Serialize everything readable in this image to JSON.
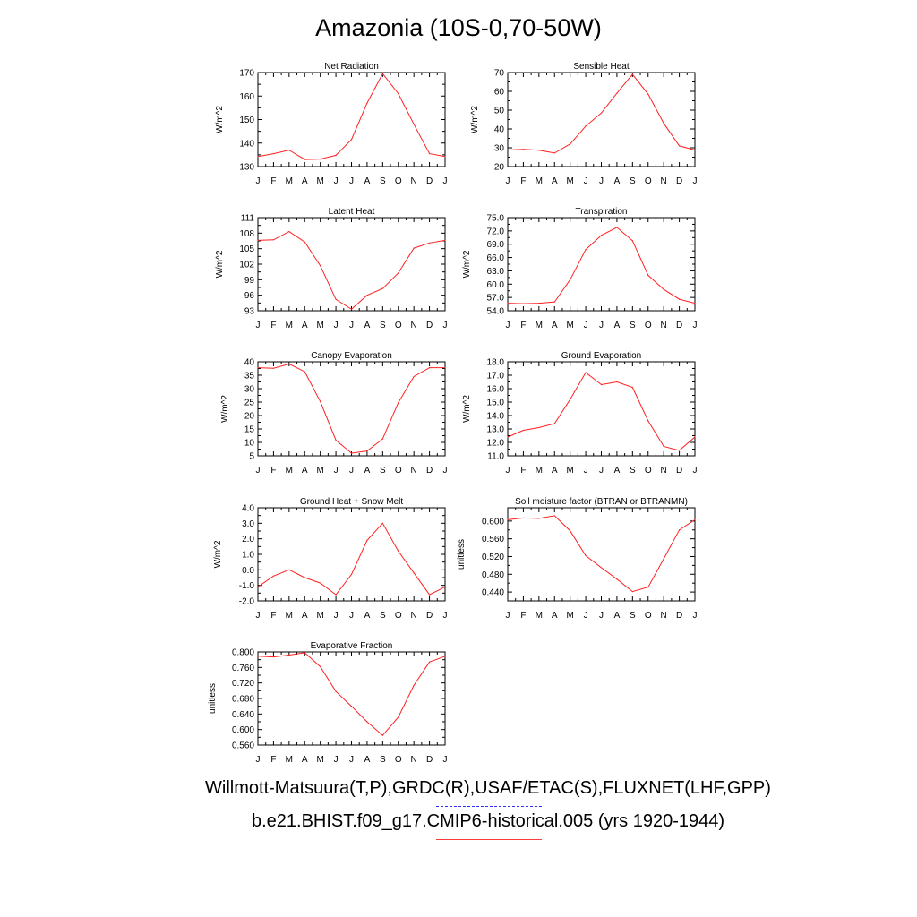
{
  "page": {
    "title": "Amazonia (10S-0,70-50W)",
    "legend": [
      {
        "label": "Willmott-Matsuura(T,P),GRDC(R),USAF/ETAC(S),FLUXNET(LHF,GPP)",
        "color": "#2f2ff5",
        "style": "dashed"
      },
      {
        "label": "b.e21.BHIST.f09_g17.CMIP6-historical.005 (yrs 1920-1944)",
        "color": "#ff2020",
        "style": "solid"
      }
    ]
  },
  "chart_data": [
    {
      "type": "line",
      "title": "Net Radiation",
      "ylabel": "W/m^2",
      "ylim": [
        130,
        170
      ],
      "yticks": [
        "130",
        "140",
        "150",
        "160",
        "170"
      ],
      "categories": [
        "J",
        "F",
        "M",
        "A",
        "M",
        "J",
        "J",
        "A",
        "S",
        "O",
        "N",
        "D",
        "J"
      ],
      "series": [
        {
          "color": "#ff2020",
          "values": [
            134.3,
            135.5,
            137.0,
            133.0,
            133.2,
            134.8,
            141.5,
            157.0,
            169.5,
            161.0,
            148.0,
            135.5,
            134.3
          ]
        }
      ]
    },
    {
      "type": "line",
      "title": "Sensible Heat",
      "ylabel": "W/m^2",
      "ylim": [
        20,
        70
      ],
      "yticks": [
        "20",
        "30",
        "40",
        "50",
        "60",
        "70"
      ],
      "categories": [
        "J",
        "F",
        "M",
        "A",
        "M",
        "J",
        "J",
        "A",
        "S",
        "O",
        "N",
        "D",
        "J"
      ],
      "series": [
        {
          "color": "#ff2020",
          "values": [
            28.8,
            29.2,
            28.7,
            27.2,
            32.0,
            41.5,
            48.5,
            59.0,
            69.0,
            58.5,
            43.0,
            31.0,
            28.8
          ]
        }
      ]
    },
    {
      "type": "line",
      "title": "Latent Heat",
      "ylabel": "W/m^2",
      "ylim": [
        93,
        111
      ],
      "yticks": [
        "93",
        "96",
        "99",
        "102",
        "105",
        "108",
        "111"
      ],
      "categories": [
        "J",
        "F",
        "M",
        "A",
        "M",
        "J",
        "J",
        "A",
        "S",
        "O",
        "N",
        "D",
        "J"
      ],
      "series": [
        {
          "color": "#ff2020",
          "values": [
            106.6,
            106.7,
            108.3,
            106.3,
            101.7,
            95.2,
            93.3,
            96.0,
            97.3,
            100.3,
            105.1,
            106.1,
            106.6
          ]
        }
      ]
    },
    {
      "type": "line",
      "title": "Transpiration",
      "ylabel": "W/m^2",
      "ylim": [
        54.0,
        75.0
      ],
      "yticks": [
        "54.0",
        "57.0",
        "60.0",
        "63.0",
        "66.0",
        "69.0",
        "72.0",
        "75.0"
      ],
      "categories": [
        "J",
        "F",
        "M",
        "A",
        "M",
        "J",
        "J",
        "A",
        "S",
        "O",
        "N",
        "D",
        "J"
      ],
      "series": [
        {
          "color": "#ff2020",
          "values": [
            55.7,
            55.6,
            55.7,
            56.0,
            61.0,
            67.8,
            71.0,
            72.8,
            69.8,
            62.0,
            58.8,
            56.6,
            55.7
          ]
        }
      ]
    },
    {
      "type": "line",
      "title": "Canopy Evaporation",
      "ylabel": "W/m^2",
      "ylim": [
        5,
        40
      ],
      "yticks": [
        "5",
        "10",
        "15",
        "20",
        "25",
        "30",
        "35",
        "40"
      ],
      "categories": [
        "J",
        "F",
        "M",
        "A",
        "M",
        "J",
        "J",
        "A",
        "S",
        "O",
        "N",
        "D",
        "J"
      ],
      "series": [
        {
          "color": "#ff2020",
          "values": [
            37.8,
            37.6,
            39.2,
            36.3,
            25.2,
            10.8,
            6.0,
            6.8,
            11.3,
            24.8,
            34.5,
            37.8,
            37.8
          ]
        }
      ]
    },
    {
      "type": "line",
      "title": "Ground Evaporation",
      "ylabel": "W/m^2",
      "ylim": [
        11.0,
        18.0
      ],
      "yticks": [
        "11.0",
        "12.0",
        "13.0",
        "14.0",
        "15.0",
        "16.0",
        "17.0",
        "18.0"
      ],
      "categories": [
        "J",
        "F",
        "M",
        "A",
        "M",
        "J",
        "J",
        "A",
        "S",
        "O",
        "N",
        "D",
        "J"
      ],
      "series": [
        {
          "color": "#ff2020",
          "values": [
            12.4,
            12.9,
            13.1,
            13.4,
            15.2,
            17.2,
            16.3,
            16.5,
            16.1,
            13.6,
            11.7,
            11.4,
            12.4
          ]
        }
      ]
    },
    {
      "type": "line",
      "title": "Ground Heat + Snow Melt",
      "ylabel": "W/m^2",
      "ylim": [
        -2.0,
        4.0
      ],
      "yticks": [
        "-2.0",
        "-1.0",
        "0.0",
        "1.0",
        "2.0",
        "3.0",
        "4.0"
      ],
      "categories": [
        "J",
        "F",
        "M",
        "A",
        "M",
        "J",
        "J",
        "A",
        "S",
        "O",
        "N",
        "D",
        "J"
      ],
      "series": [
        {
          "color": "#ff2020",
          "values": [
            -1.1,
            -0.4,
            0.0,
            -0.5,
            -0.85,
            -1.6,
            -0.3,
            1.9,
            3.0,
            1.2,
            -0.2,
            -1.6,
            -1.1
          ]
        }
      ]
    },
    {
      "type": "line",
      "title": "Soil moisture factor (BTRAN or BTRANMN)",
      "ylabel": "unitless",
      "ylim": [
        0.42,
        0.63
      ],
      "yticks": [
        "0.440",
        "0.480",
        "0.520",
        "0.560",
        "0.600"
      ],
      "yticks_values": [
        0.44,
        0.48,
        0.52,
        0.56,
        0.6
      ],
      "categories": [
        "J",
        "F",
        "M",
        "A",
        "M",
        "J",
        "J",
        "A",
        "S",
        "O",
        "N",
        "D",
        "J"
      ],
      "series": [
        {
          "color": "#ff2020",
          "values": [
            0.603,
            0.607,
            0.606,
            0.612,
            0.578,
            0.522,
            0.495,
            0.469,
            0.441,
            0.451,
            0.515,
            0.58,
            0.603
          ]
        }
      ]
    },
    {
      "type": "line",
      "title": "Evaporative Fraction",
      "ylabel": "unitless",
      "ylim": [
        0.56,
        0.8
      ],
      "yticks": [
        "0.560",
        "0.600",
        "0.640",
        "0.680",
        "0.720",
        "0.760",
        "0.800"
      ],
      "categories": [
        "J",
        "F",
        "M",
        "A",
        "M",
        "J",
        "J",
        "A",
        "S",
        "O",
        "N",
        "D",
        "J"
      ],
      "series": [
        {
          "color": "#ff2020",
          "values": [
            0.789,
            0.787,
            0.792,
            0.798,
            0.762,
            0.698,
            0.66,
            0.62,
            0.585,
            0.632,
            0.714,
            0.774,
            0.789
          ]
        }
      ]
    }
  ]
}
